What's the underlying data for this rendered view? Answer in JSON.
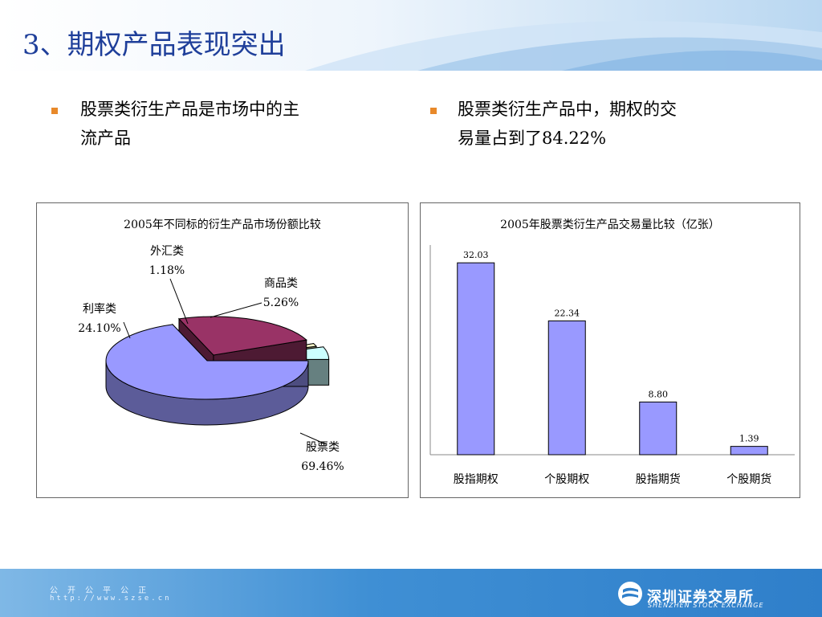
{
  "title": "3、期权产品表现突出",
  "bullets": [
    {
      "lines": [
        "股票类衍生产品是市场中的主",
        "流产品"
      ]
    },
    {
      "lines": [
        "股票类衍生产品中，期权的交",
        "易量占到了84.22%"
      ]
    }
  ],
  "colors": {
    "title": "#1f3f9a",
    "bullet": "#e8892a",
    "bar": "#9999ff",
    "footer": "#2f7fca"
  },
  "chart_data": [
    {
      "type": "pie",
      "title": "2005年不同标的衍生产品市场份额比较",
      "slices": [
        {
          "label": "股票类",
          "value": 69.46,
          "value_label": "69.46%",
          "color": "#9999ff"
        },
        {
          "label": "利率类",
          "value": 24.1,
          "value_label": "24.10%",
          "color": "#993366"
        },
        {
          "label": "外汇类",
          "value": 1.18,
          "value_label": "1.18%",
          "color": "#ffffcc"
        },
        {
          "label": "商品类",
          "value": 5.26,
          "value_label": "5.26%",
          "color": "#ccffff"
        }
      ],
      "style": "3d-exploded"
    },
    {
      "type": "bar",
      "title": "2005年股票类衍生产品交易量比较（亿张）",
      "categories": [
        "股指期权",
        "个股期权",
        "股指期货",
        "个股期货"
      ],
      "values": [
        32.03,
        22.34,
        8.8,
        1.39
      ],
      "value_labels": [
        "32.03",
        "22.34",
        "8.80",
        "1.39"
      ],
      "color": "#9999ff",
      "ylim": [
        0,
        35
      ],
      "grid": false
    }
  ],
  "footer": {
    "motto": "公 开 公 平 公 正",
    "url": "http://www.szse.cn",
    "exchange_name": "深圳证券交易所",
    "exchange_name_en": "SHENZHEN STOCK EXCHANGE"
  }
}
